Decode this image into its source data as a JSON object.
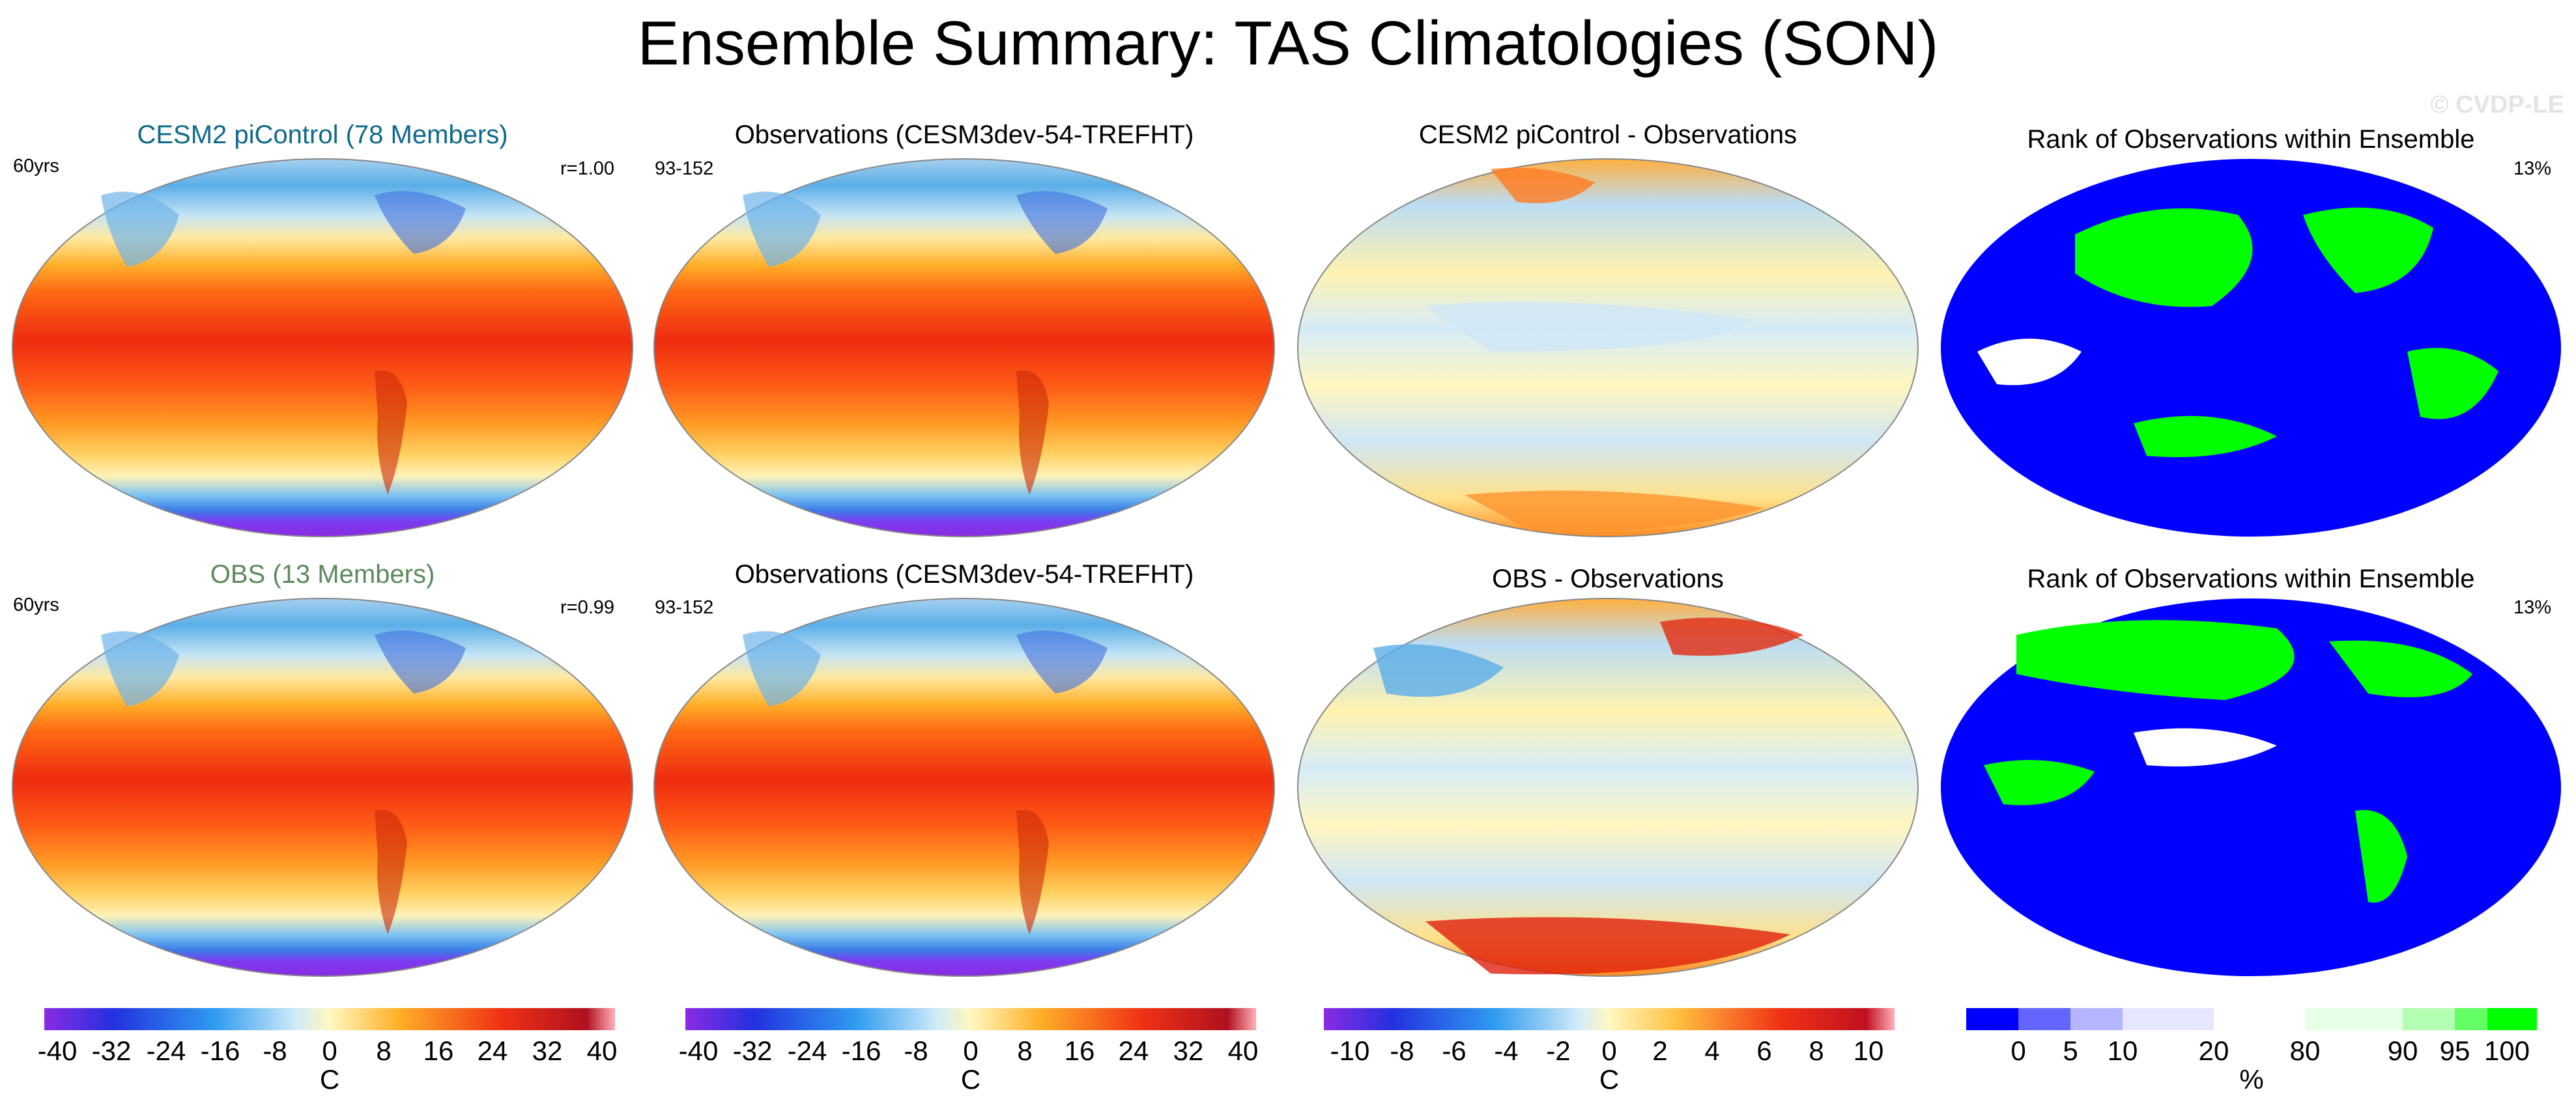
{
  "title": "Ensemble Summary: TAS Climatologies (SON)",
  "watermark": "© CVDP-LE",
  "colors": {
    "ensemble_title": "#0e6a8a",
    "obs_title": "#5c8a5c",
    "rank_low": "#0000ff",
    "rank_high": "#00ff00",
    "rank_mid": "#ffffff"
  },
  "rows": [
    {
      "ens_panel": {
        "title": "CESM2 piControl (78 Members)",
        "left": "60yrs",
        "right": "r=1.00"
      },
      "obs_panel": {
        "title": "Observations (CESM3dev-54-TREFHT)",
        "left": "93-152"
      },
      "diff_panel": {
        "title": "CESM2 piControl - Observations"
      },
      "rank_panel": {
        "title": "Rank of Observations within Ensemble",
        "right": "13%"
      }
    },
    {
      "ens_panel": {
        "title": "OBS (13 Members)",
        "left": "60yrs",
        "right": "r=0.99"
      },
      "obs_panel": {
        "title": "Observations (CESM3dev-54-TREFHT)",
        "left": "93-152"
      },
      "diff_panel": {
        "title": "OBS - Observations"
      },
      "rank_panel": {
        "title": "Rank of Observations within Ensemble",
        "right": "13%"
      }
    }
  ],
  "colorbars": [
    {
      "labels": [
        "-40",
        "-32",
        "-24",
        "-16",
        "-8",
        "0",
        "8",
        "16",
        "24",
        "32",
        "40"
      ],
      "units": "C"
    },
    {
      "labels": [
        "-40",
        "-32",
        "-24",
        "-16",
        "-8",
        "0",
        "8",
        "16",
        "24",
        "32",
        "40"
      ],
      "units": "C"
    },
    {
      "labels": [
        "-10",
        "-8",
        "-6",
        "-4",
        "-2",
        "0",
        "2",
        "4",
        "6",
        "8",
        "10"
      ],
      "units": "C"
    },
    {
      "labels": [
        "0",
        "5",
        "10",
        "20",
        "80",
        "90",
        "95",
        "100"
      ],
      "units": "%"
    }
  ]
}
